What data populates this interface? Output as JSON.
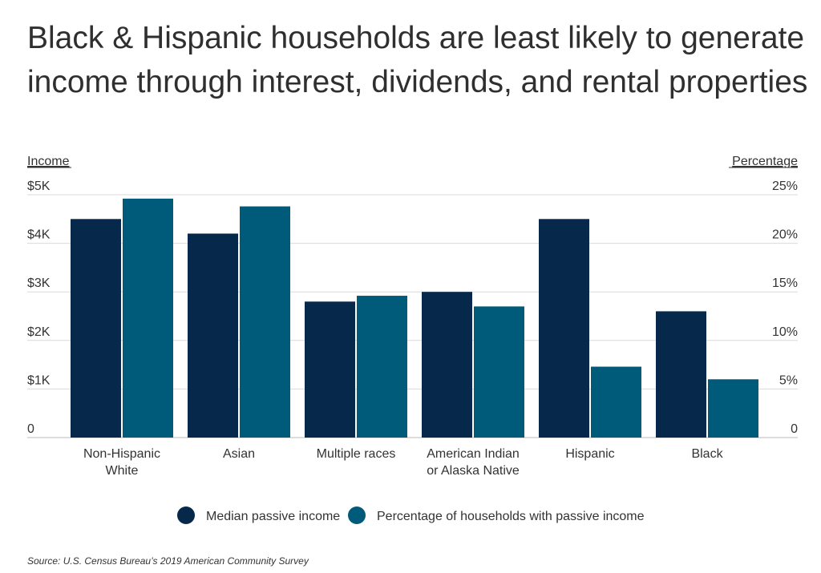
{
  "chart_data": {
    "type": "bar",
    "title": "Black & Hispanic households are least likely to generate income through interest, dividends, and rental properties",
    "ylabel_left": "Income",
    "ylabel_right": "Percentage",
    "categories": [
      [
        "Non-Hispanic",
        "White"
      ],
      [
        "Asian"
      ],
      [
        "Multiple races"
      ],
      [
        "American Indian",
        "or Alaska Native"
      ],
      [
        "Hispanic"
      ],
      [
        "Black"
      ]
    ],
    "left_axis": {
      "min": 0,
      "max": 5000,
      "ticks": [
        0,
        1000,
        2000,
        3000,
        4000,
        5000
      ],
      "tick_labels": [
        "0",
        "$1K",
        "$2K",
        "$3K",
        "$4K",
        "$5K"
      ]
    },
    "right_axis": {
      "min": 0,
      "max": 25,
      "ticks": [
        0,
        5,
        10,
        15,
        20,
        25
      ],
      "tick_labels": [
        "0",
        "5%",
        "10%",
        "15%",
        "20%",
        "25%"
      ]
    },
    "series": [
      {
        "name": "Median passive income",
        "axis": "left",
        "color": "#06284a",
        "values": [
          4500,
          4200,
          2800,
          3000,
          4500,
          2600
        ]
      },
      {
        "name": "Percentage of households with passive income",
        "axis": "right",
        "color": "#005a7a",
        "values": [
          24.6,
          23.8,
          14.6,
          13.5,
          7.3,
          6.0
        ]
      }
    ],
    "grid": true,
    "legend": "bottom-center",
    "source": "Source:  U.S. Census Bureau’s 2019 American Community Survey"
  }
}
